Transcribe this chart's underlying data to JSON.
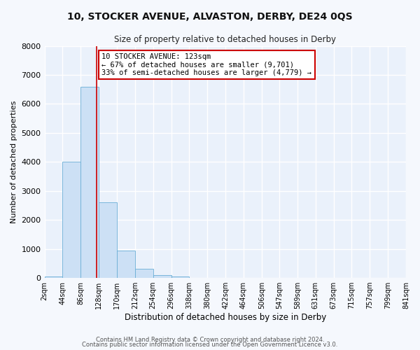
{
  "title": "10, STOCKER AVENUE, ALVASTON, DERBY, DE24 0QS",
  "subtitle": "Size of property relative to detached houses in Derby",
  "xlabel": "Distribution of detached houses by size in Derby",
  "ylabel": "Number of detached properties",
  "bar_color": "#cce0f5",
  "bar_edge_color": "#6aaed6",
  "bg_color": "#eaf1fb",
  "grid_color": "#ffffff",
  "bin_edges": [
    2,
    44,
    86,
    128,
    170,
    212,
    254,
    296,
    338,
    380,
    422,
    464,
    506,
    547,
    589,
    631,
    673,
    715,
    757,
    799,
    841
  ],
  "bin_counts": [
    50,
    4000,
    6600,
    2600,
    950,
    310,
    110,
    50,
    0,
    0,
    0,
    0,
    0,
    0,
    0,
    0,
    0,
    0,
    0,
    0
  ],
  "property_size": 123,
  "vline_color": "#cc0000",
  "annotation_line1": "10 STOCKER AVENUE: 123sqm",
  "annotation_line2": "← 67% of detached houses are smaller (9,701)",
  "annotation_line3": "33% of semi-detached houses are larger (4,779) →",
  "annotation_box_color": "white",
  "annotation_box_edge_color": "#cc0000",
  "ylim": [
    0,
    8000
  ],
  "yticks": [
    0,
    1000,
    2000,
    3000,
    4000,
    5000,
    6000,
    7000,
    8000
  ],
  "footer1": "Contains HM Land Registry data © Crown copyright and database right 2024.",
  "footer2": "Contains public sector information licensed under the Open Government Licence v3.0."
}
